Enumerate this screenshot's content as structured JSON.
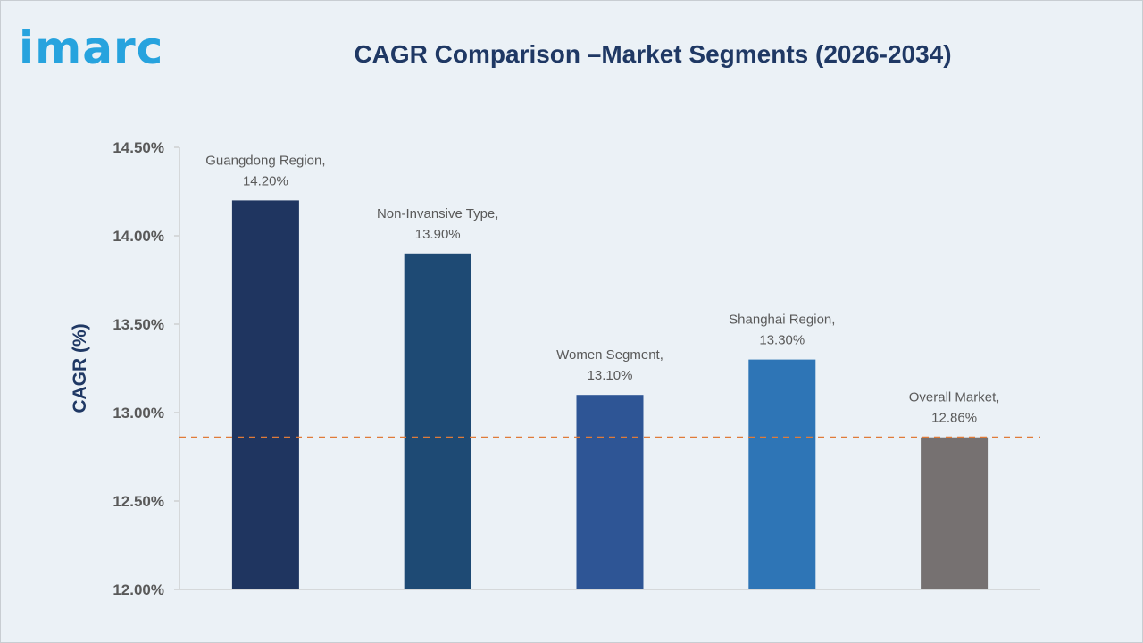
{
  "logo_text": "imarc",
  "chart_data": {
    "type": "bar",
    "title": "CAGR Comparison –Market Segments (2026-2034)",
    "xlabel": "",
    "ylabel": "CAGR (%)",
    "ylim": [
      12.0,
      14.5
    ],
    "yticks": [
      12.0,
      12.5,
      13.0,
      13.5,
      14.0,
      14.5
    ],
    "ytick_labels": [
      "12.00%",
      "12.50%",
      "13.00%",
      "13.50%",
      "14.00%",
      "14.50%"
    ],
    "categories": [
      "Guangdong Region",
      "Non-Invansive Type",
      "Women Segment",
      "Shanghai Region",
      "Overall Market"
    ],
    "values": [
      14.2,
      13.9,
      13.1,
      13.3,
      12.86
    ],
    "data_labels": [
      [
        "Guangdong Region,",
        "14.20%"
      ],
      [
        "Non-Invansive Type,",
        "13.90%"
      ],
      [
        "Women Segment,",
        "13.10%"
      ],
      [
        "Shanghai Region,",
        "13.30%"
      ],
      [
        "Overall Market,",
        "12.86%"
      ]
    ],
    "bar_colors": [
      "#1f3560",
      "#1e4a74",
      "#2e5595",
      "#2e75b6",
      "#767171"
    ],
    "reference_line": {
      "value": 12.86,
      "style": "dashed",
      "color": "#e07b39"
    },
    "grid": false,
    "legend": "none"
  }
}
